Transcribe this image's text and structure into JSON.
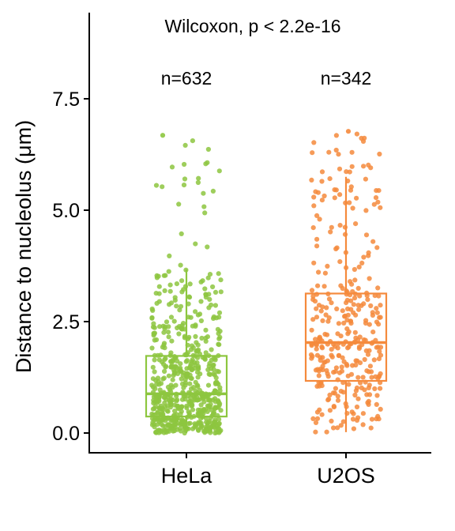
{
  "chart_data": {
    "type": "box",
    "title": "",
    "annotation": "Wilcoxon, p < 2.2e-16",
    "xlabel": "",
    "ylabel": "Distance to nucleolus (μm)",
    "ylim": [
      -0.45,
      9.3
    ],
    "yticks": [
      0.0,
      2.5,
      5.0,
      7.5
    ],
    "ytick_labels": [
      "0.0",
      "2.5",
      "5.0",
      "7.5"
    ],
    "grid": false,
    "legend": "none",
    "categories": [
      "HeLa",
      "U2OS"
    ],
    "counts": [
      "n=632",
      "n=342"
    ],
    "colors": {
      "HeLa": "#8dc63f",
      "U2OS": "#f58a3c"
    },
    "boxes": [
      {
        "category": "HeLa",
        "n": 632,
        "whisker_low": 0.0,
        "q1": 0.37,
        "median": 0.88,
        "q3": 1.73,
        "whisker_high": 3.67,
        "max_point": 6.68
      },
      {
        "category": "U2OS",
        "n": 342,
        "whisker_low": 0.02,
        "q1": 1.17,
        "median": 2.03,
        "q3": 3.13,
        "whisker_high": 5.75,
        "max_point": 6.77
      }
    ]
  }
}
